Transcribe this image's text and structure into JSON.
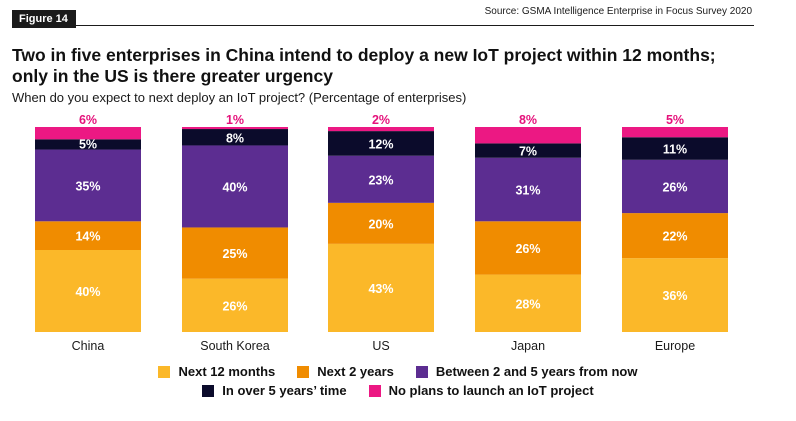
{
  "figure_label": "Figure 14",
  "source": "Source: GSMA Intelligence Enterprise in Focus Survey 2020",
  "title_line1": "Two in five enterprises in China intend to deploy a new IoT project within 12 months;",
  "title_line2": "only in the US is there greater urgency",
  "subtitle": "When do you expect to next deploy an IoT project? (Percentage of enterprises)",
  "colors": {
    "next_12_months": "#fbb829",
    "next_2_years": "#f08c00",
    "between_2_5": "#5c2d91",
    "over_5": "#0b0b2b",
    "no_plans": "#ec1883",
    "no_plans_label": "#e5127b"
  },
  "chart_data": {
    "type": "bar",
    "stacked": true,
    "percent": true,
    "categories": [
      "China",
      "South Korea",
      "US",
      "Japan",
      "Europe"
    ],
    "series": [
      {
        "key": "next_12_months",
        "name": "Next 12 months",
        "values": [
          40,
          26,
          43,
          28,
          36
        ]
      },
      {
        "key": "next_2_years",
        "name": "Next 2 years",
        "values": [
          14,
          25,
          20,
          26,
          22
        ]
      },
      {
        "key": "between_2_5",
        "name": "Between 2 and 5 years from now",
        "values": [
          35,
          40,
          23,
          31,
          26
        ]
      },
      {
        "key": "over_5",
        "name": "In over 5 years’ time",
        "values": [
          5,
          8,
          12,
          7,
          11
        ]
      },
      {
        "key": "no_plans",
        "name": "No plans to launch an IoT project",
        "values": [
          6,
          1,
          2,
          8,
          5
        ]
      }
    ],
    "value_labels": {
      "next_12_months": [
        "40%",
        "26%",
        "43%",
        "28%",
        "36%"
      ],
      "next_2_years": [
        "14%",
        "25%",
        "20%",
        "26%",
        "22%"
      ],
      "between_2_5": [
        "35%",
        "40%",
        "23%",
        "31%",
        "26%"
      ],
      "over_5": [
        "5%",
        "8%",
        "12%",
        "7%",
        "11%"
      ],
      "no_plans": [
        "6%",
        "1%",
        "2%",
        "8%",
        "5%"
      ]
    },
    "ylim": [
      0,
      100
    ],
    "legend_position": "bottom"
  }
}
